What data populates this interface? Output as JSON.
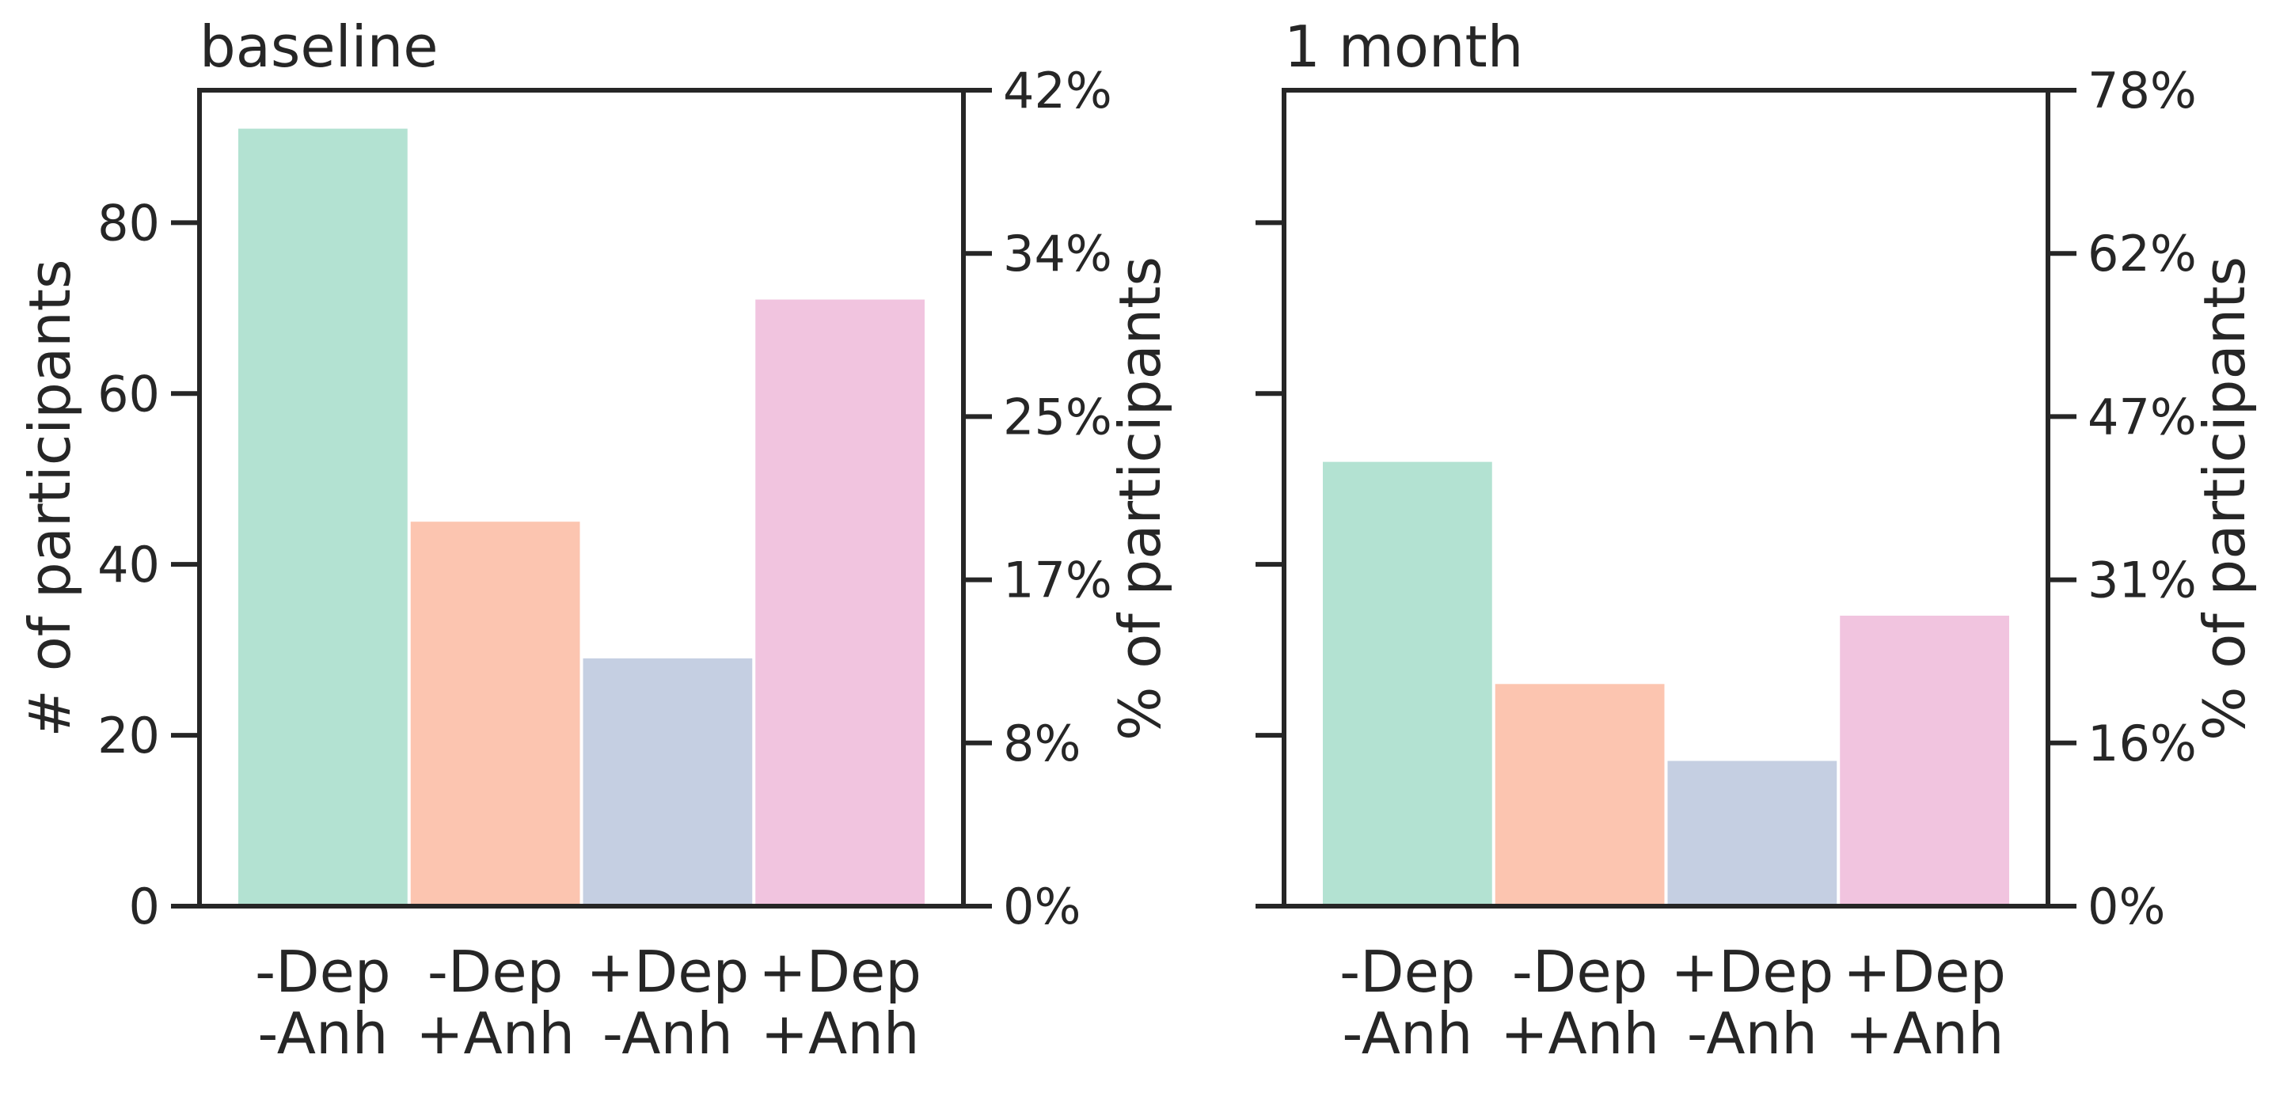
{
  "chart_data": [
    {
      "type": "bar",
      "title": "baseline",
      "categories": [
        "-Dep\n-Anh",
        "-Dep\n+Anh",
        "+Dep\n-Anh",
        "+Dep\n+Anh"
      ],
      "values": [
        91,
        45,
        29,
        71
      ],
      "colors": [
        "#b3e2d2",
        "#fcc5b0",
        "#c5cfe2",
        "#f1c4df"
      ],
      "ylabel": "# of participants",
      "ylabel_right": "% of participants",
      "ylim": [
        0,
        95.5
      ],
      "yticks": [
        0,
        20,
        40,
        60,
        80
      ],
      "right_tick_labels": [
        "0%",
        "8%",
        "17%",
        "25%",
        "34%",
        "42%"
      ],
      "grid": false
    },
    {
      "type": "bar",
      "title": "1 month",
      "categories": [
        "-Dep\n-Anh",
        "-Dep\n+Anh",
        "+Dep\n-Anh",
        "+Dep\n+Anh"
      ],
      "values": [
        52,
        26,
        17,
        34
      ],
      "colors": [
        "#b3e2d2",
        "#fcc5b0",
        "#c5cfe2",
        "#f1c4df"
      ],
      "ylabel": "",
      "ylabel_right": "% of participants",
      "ylim": [
        0,
        95.5
      ],
      "yticks": [
        0,
        20,
        40,
        60,
        80
      ],
      "right_tick_labels": [
        "0%",
        "16%",
        "31%",
        "47%",
        "62%",
        "78%"
      ],
      "grid": false
    }
  ]
}
